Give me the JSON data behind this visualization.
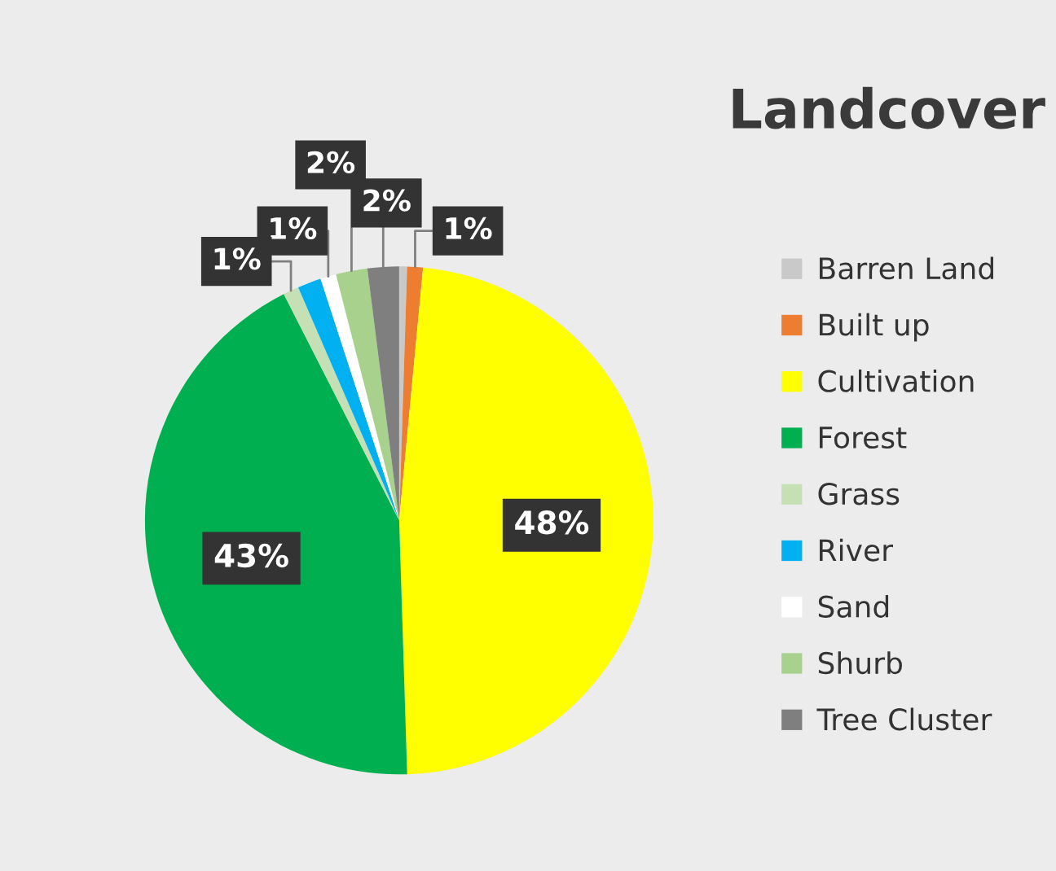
{
  "chart_data": {
    "type": "pie",
    "title": "Landcover",
    "categories": [
      "Barren Land",
      "Built up",
      "Cultivation",
      "Forest",
      "Grass",
      "River",
      "Sand",
      "Shurb",
      "Tree Cluster"
    ],
    "values": [
      0.5,
      1,
      48,
      43,
      1,
      1.5,
      1,
      2,
      2
    ],
    "value_labels": [
      null,
      "1%",
      "48%",
      "43%",
      "1%",
      null,
      "1%",
      "2%",
      "2%"
    ],
    "colors": [
      "#c9c9c9",
      "#ed7d31",
      "#ffff00",
      "#00b050",
      "#c5e0b4",
      "#00b0f0",
      "#ffffff",
      "#a9d18e",
      "#7f7f7f"
    ],
    "legend": "right"
  }
}
